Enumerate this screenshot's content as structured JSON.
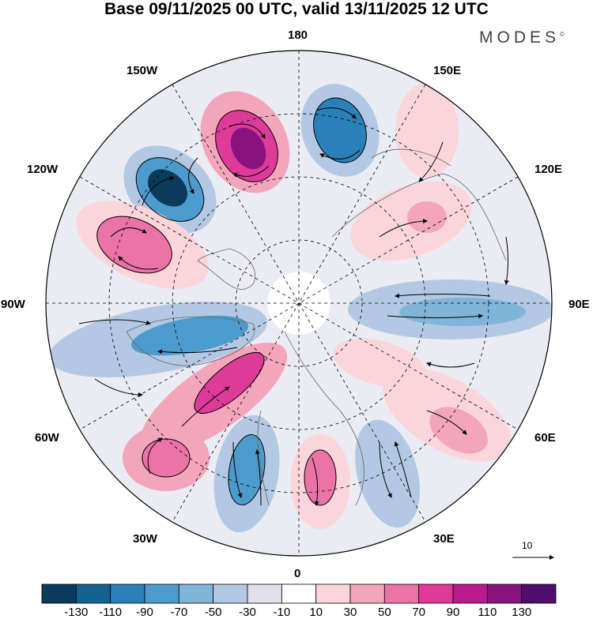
{
  "title": "Base 09/11/2025 00 UTC, valid 13/11/2025 12 UTC",
  "brand": "MODES",
  "brand_mark": "©",
  "longitude_labels": {
    "n180": "180",
    "e150": "150E",
    "e120": "120E",
    "e90": "90E",
    "e60": "60E",
    "e30": "30E",
    "z0": "0",
    "w30": "30W",
    "w60": "60W",
    "w90": "90W",
    "w120": "120W",
    "w150": "150W"
  },
  "vector_scale": {
    "label": "10"
  },
  "colorbar": {
    "ticks": [
      "-130",
      "-110",
      "-90",
      "-70",
      "-50",
      "-30",
      "-10",
      "10",
      "30",
      "50",
      "70",
      "90",
      "110",
      "130"
    ],
    "colors": [
      "#0b3b5c",
      "#14628f",
      "#2a80b8",
      "#4d9bcc",
      "#80b4d9",
      "#b3c9e3",
      "#e3e0ee",
      "#ffffff",
      "#fad6da",
      "#f3a5bb",
      "#ec73a6",
      "#de3b99",
      "#bb1a8c",
      "#88137f",
      "#4f0d6e"
    ]
  },
  "anomaly_centers": [
    {
      "name": "low-150W",
      "value": -130,
      "color": "#14628f"
    },
    {
      "name": "high-160W",
      "value": 120,
      "color": "#88137f"
    },
    {
      "name": "low-170E",
      "value": -90,
      "color": "#2a80b8"
    },
    {
      "name": "high-120W",
      "value": 80,
      "color": "#de3b99"
    },
    {
      "name": "low-90W",
      "value": -70,
      "color": "#4d9bcc"
    },
    {
      "name": "high-60W",
      "value": 90,
      "color": "#de3b99"
    },
    {
      "name": "high-45W",
      "value": 80,
      "color": "#de3b99"
    },
    {
      "name": "low-30W",
      "value": -70,
      "color": "#4d9bcc"
    },
    {
      "name": "high-15W",
      "value": 70,
      "color": "#ec73a6"
    },
    {
      "name": "low-10E",
      "value": -50,
      "color": "#80b4d9"
    },
    {
      "name": "high-60E",
      "value": 50,
      "color": "#ec73a6"
    },
    {
      "name": "low-90E",
      "value": -50,
      "color": "#80b4d9"
    },
    {
      "name": "high-140E",
      "value": 40,
      "color": "#f3a5bb"
    }
  ]
}
